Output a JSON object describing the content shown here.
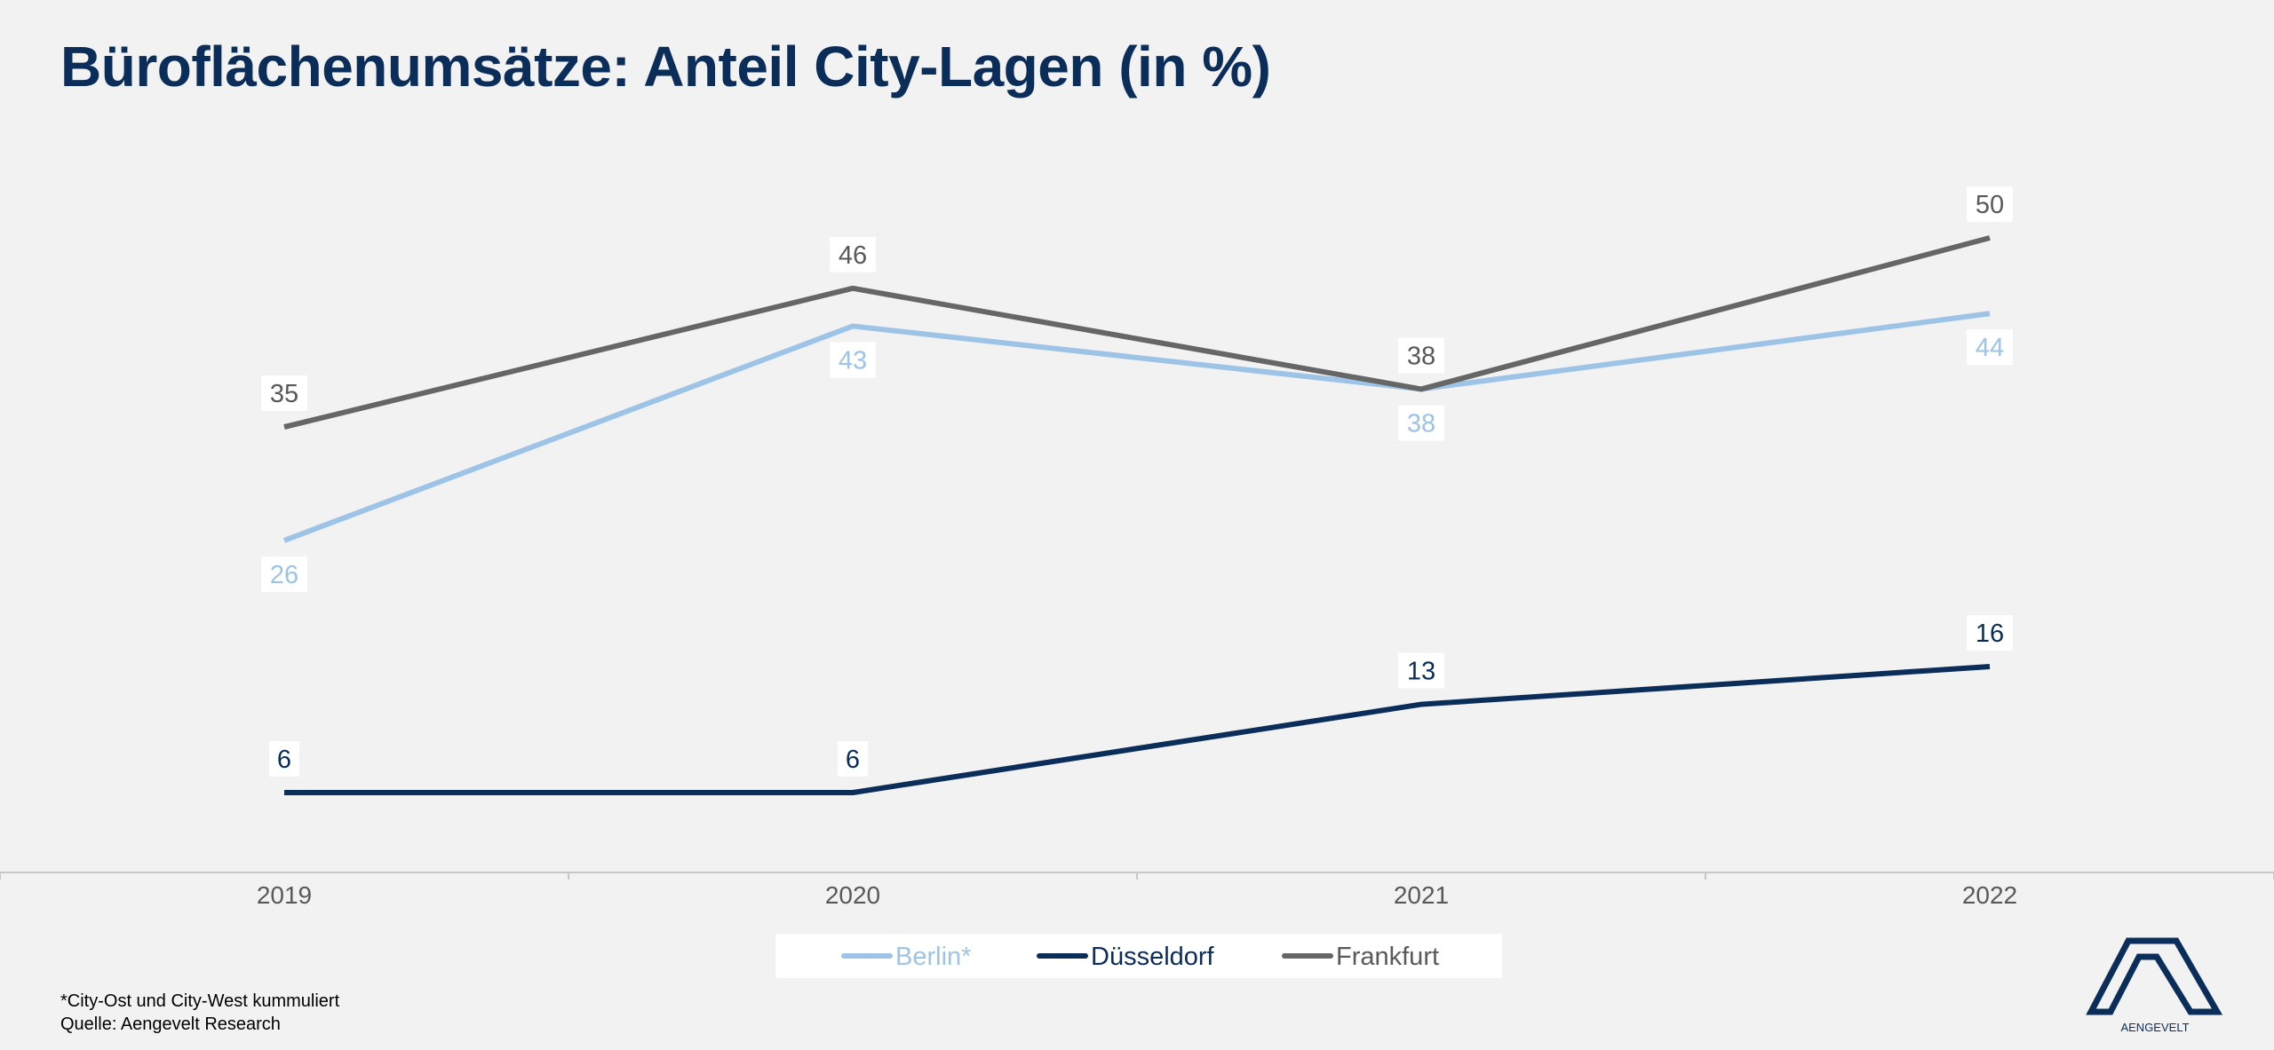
{
  "title": "Büroflächenumsätze: Anteil City-Lagen (in %)",
  "footnotes": {
    "note": "*City-Ost und City-West kummuliert",
    "source": "Quelle: Aengevelt Research"
  },
  "logo": {
    "text": "AENGEVELT",
    "color": "#0a2d5a"
  },
  "chart_data": {
    "type": "line",
    "categories": [
      "2019",
      "2020",
      "2021",
      "2022"
    ],
    "ylim": [
      0,
      55
    ],
    "grid": false,
    "legend_position": "bottom",
    "series": [
      {
        "name": "Berlin*",
        "values": [
          26,
          43,
          38,
          44
        ],
        "color": "#9dc3e6",
        "label_color": "#9dc3e6",
        "label_position": "below"
      },
      {
        "name": "Düsseldorf",
        "values": [
          6,
          6,
          13,
          16
        ],
        "color": "#0a2d5a",
        "label_color": "#0a2d5a",
        "label_position": "above"
      },
      {
        "name": "Frankfurt",
        "values": [
          35,
          46,
          38,
          50
        ],
        "color": "#666666",
        "label_color": "#595959",
        "label_position": "above"
      }
    ]
  }
}
